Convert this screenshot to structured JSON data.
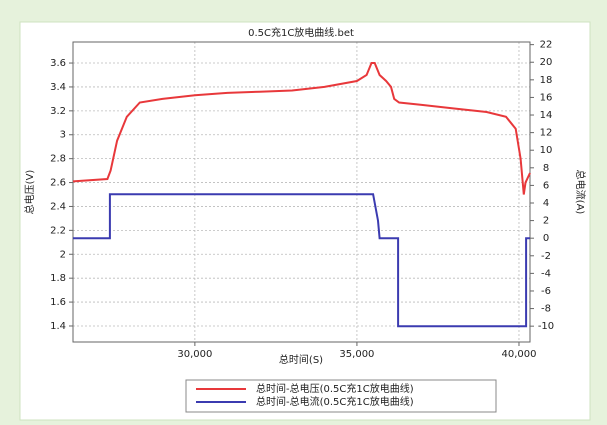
{
  "chart_data": {
    "type": "line",
    "title": "0.5C充1C放电曲线.bet",
    "xlabel": "总时间(S)",
    "ylabel": "总电压(V)",
    "y2label": "总电流(A)",
    "xlim": [
      26240,
      40340
    ],
    "xticks": [
      {
        "value": 30000,
        "label": "30,000"
      },
      {
        "value": 35000,
        "label": "35,000"
      },
      {
        "value": 40000,
        "label": "40,000"
      }
    ],
    "ylim": [
      1.266,
      3.776
    ],
    "yticks": [
      1.4,
      1.6,
      1.8,
      2,
      2.2,
      2.4,
      2.6,
      2.8,
      3,
      3.2,
      3.4,
      3.6
    ],
    "y2lim": [
      -11.8,
      22.3
    ],
    "y2ticks": [
      -10,
      -8,
      -6,
      -4,
      -2,
      0,
      2,
      4,
      6,
      8,
      10,
      12,
      14,
      16,
      18,
      20,
      22
    ],
    "grid": true,
    "series": [
      {
        "name": "总时间-总电压(0.5C充1C放电曲线)",
        "color": "#e8383b",
        "x": [
          26240,
          27300,
          27400,
          27600,
          27900,
          28300,
          29000,
          30000,
          31000,
          32000,
          33000,
          34000,
          35000,
          35300,
          35450,
          35550,
          35700,
          35900,
          36050,
          36150,
          36300,
          37000,
          38000,
          39000,
          39600,
          39900,
          40050,
          40150,
          40200,
          40340
        ],
        "values": [
          2.61,
          2.63,
          2.7,
          2.95,
          3.15,
          3.27,
          3.3,
          3.33,
          3.35,
          3.36,
          3.37,
          3.4,
          3.45,
          3.5,
          3.6,
          3.6,
          3.5,
          3.45,
          3.4,
          3.3,
          3.27,
          3.25,
          3.22,
          3.19,
          3.15,
          3.05,
          2.8,
          2.5,
          2.6,
          2.68
        ]
      },
      {
        "name": "总时间-总电流(0.5C充1C放电曲线)",
        "color": "#3b3bb0",
        "axis": "y2",
        "x": [
          26240,
          27380,
          27380,
          35500,
          35650,
          35700,
          36270,
          36270,
          40220,
          40220,
          40340
        ],
        "values": [
          0,
          0,
          5,
          5,
          2,
          0,
          0,
          -10,
          -10,
          0,
          0
        ]
      }
    ]
  }
}
